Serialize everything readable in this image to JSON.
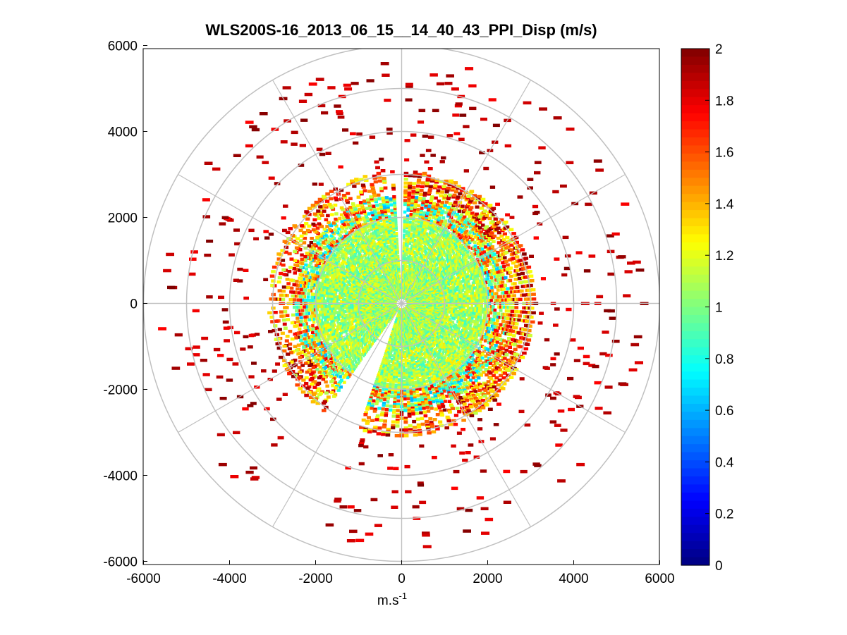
{
  "chart_data": {
    "type": "heatmap",
    "subtype": "polar-ppi-scan",
    "title": "WLS200S-16_2013_06_15__14_40_43_PPI_Disp (m/s)",
    "xlabel": "m.s",
    "xlabel_superscript": "-1",
    "ylabel": "",
    "xlim": [
      -6000,
      6000
    ],
    "ylim": [
      -6000,
      6000
    ],
    "xticks": [
      -6000,
      -4000,
      -2000,
      0,
      2000,
      4000,
      6000
    ],
    "yticks": [
      6000,
      4000,
      2000,
      0,
      -2000,
      -4000,
      -6000
    ],
    "polar_rings": [
      1000,
      2000,
      3000,
      4000,
      5000,
      6000
    ],
    "polar_spokes_deg": [
      0,
      30,
      60,
      90,
      120,
      150,
      180,
      210,
      240,
      270,
      300,
      330
    ],
    "colorbar": {
      "colormap": "jet",
      "range": [
        0,
        2
      ],
      "ticks": [
        2,
        1.8,
        1.6,
        1.4,
        1.2,
        1,
        0.8,
        0.6,
        0.4,
        0.2,
        0
      ],
      "tick_labels": [
        "2",
        "1.8",
        "1.6",
        "1.4",
        "1.2",
        "1",
        "0.8",
        "0.6",
        "0.4",
        "0.2",
        "0"
      ]
    },
    "colors": {
      "grid": "#c0c0c0",
      "axes": "#000000",
      "background": "#ffffff"
    },
    "data_description": {
      "dense_core_radius_m": 2000,
      "mid_ring_radius_m": [
        2000,
        3100
      ],
      "sparse_radius_m": [
        3100,
        5600
      ],
      "blank_sector_deg": [
        200,
        215
      ]
    }
  }
}
